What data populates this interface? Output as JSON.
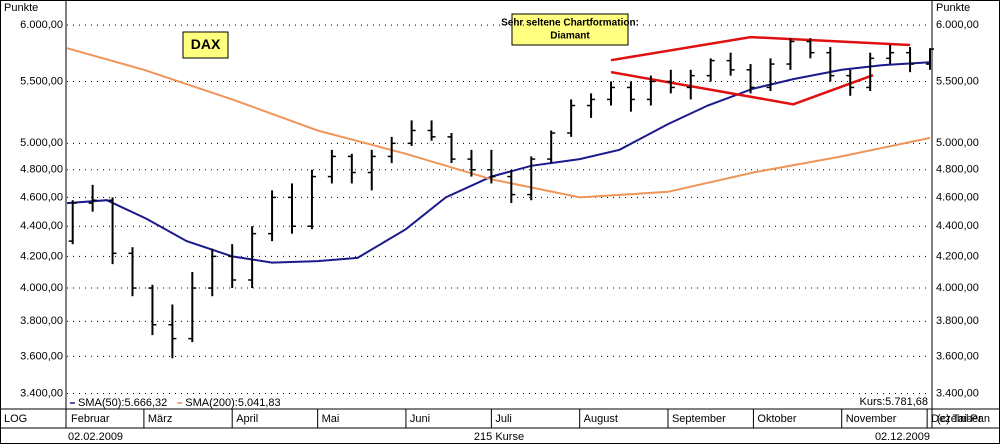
{
  "chart_data": {
    "type": "ohlc",
    "title": "DAX",
    "annotation": [
      "Sehr seltene Chartformation:",
      "Diamant"
    ],
    "y_label": "Punkte",
    "log_scale": true,
    "grid": true,
    "scale_label": "LOG",
    "footer": {
      "start": "02.02.2009",
      "count": "215 Kurse",
      "end": "02.12.2009",
      "copyright": "(c) Tai-Pan"
    },
    "xlim": [
      "2009-02-02",
      "2009-12-02"
    ],
    "xticks": [
      {
        "value": "2009-02-01",
        "label": "Februar"
      },
      {
        "value": "2009-03-01",
        "label": "März"
      },
      {
        "value": "2009-04-01",
        "label": "April"
      },
      {
        "value": "2009-05-01",
        "label": "Mai"
      },
      {
        "value": "2009-06-01",
        "label": "Juni"
      },
      {
        "value": "2009-07-01",
        "label": "Juli"
      },
      {
        "value": "2009-08-01",
        "label": "August"
      },
      {
        "value": "2009-09-01",
        "label": "September"
      },
      {
        "value": "2009-10-01",
        "label": "Oktober"
      },
      {
        "value": "2009-11-01",
        "label": "November"
      },
      {
        "value": "2009-12-01",
        "label": "Dezember"
      }
    ],
    "ylim": [
      3340,
      6160
    ],
    "yticks": [
      {
        "value": 3400,
        "label": "3.400,00"
      },
      {
        "value": 3600,
        "label": "3.600,00"
      },
      {
        "value": 3800,
        "label": "3.800,00"
      },
      {
        "value": 4000,
        "label": "4.000,00"
      },
      {
        "value": 4200,
        "label": "4.200,00"
      },
      {
        "value": 4400,
        "label": "4.400,00"
      },
      {
        "value": 4600,
        "label": "4.600,00"
      },
      {
        "value": 4800,
        "label": "4.800,00"
      },
      {
        "value": 5000,
        "label": "5.000,00"
      },
      {
        "value": 5500,
        "label": "5.500,00"
      },
      {
        "value": 6000,
        "label": "6.000,00"
      }
    ],
    "x": [
      "2009-02-04",
      "2009-02-11",
      "2009-02-18",
      "2009-02-25",
      "2009-03-04",
      "2009-03-11",
      "2009-03-18",
      "2009-03-25",
      "2009-04-01",
      "2009-04-08",
      "2009-04-15",
      "2009-04-22",
      "2009-04-29",
      "2009-05-06",
      "2009-05-13",
      "2009-05-20",
      "2009-05-27",
      "2009-06-03",
      "2009-06-10",
      "2009-06-17",
      "2009-06-24",
      "2009-07-01",
      "2009-07-08",
      "2009-07-15",
      "2009-07-22",
      "2009-07-29",
      "2009-08-05",
      "2009-08-12",
      "2009-08-19",
      "2009-08-26",
      "2009-09-02",
      "2009-09-09",
      "2009-09-16",
      "2009-09-23",
      "2009-09-30",
      "2009-10-07",
      "2009-10-14",
      "2009-10-21",
      "2009-10-28",
      "2009-11-04",
      "2009-11-11",
      "2009-11-18",
      "2009-11-25",
      "2009-12-02"
    ],
    "series": [
      {
        "name": "Kurs:5.781,68",
        "color": "#000000",
        "open": [
          4300,
          4560,
          4580,
          4220,
          4000,
          3780,
          3700,
          4000,
          4200,
          4050,
          4350,
          4600,
          4400,
          4750,
          4900,
          4780,
          4900,
          5000,
          5100,
          5050,
          4880,
          4800,
          4750,
          4620,
          4880,
          5080,
          5300,
          5350,
          5450,
          5350,
          5500,
          5450,
          5550,
          5680,
          5600,
          5450,
          5650,
          5850,
          5750,
          5550,
          5450,
          5700,
          5750,
          5650
        ],
        "high": [
          4580,
          4690,
          4600,
          4260,
          4020,
          3900,
          4100,
          4250,
          4280,
          4400,
          4650,
          4700,
          4800,
          4950,
          4920,
          4950,
          5050,
          5180,
          5180,
          5080,
          4950,
          4950,
          4800,
          4900,
          5100,
          5350,
          5400,
          5500,
          5500,
          5550,
          5600,
          5600,
          5700,
          5750,
          5650,
          5700,
          5880,
          5880,
          5800,
          5600,
          5750,
          5820,
          5800,
          5790
        ],
        "low": [
          4280,
          4500,
          4150,
          3950,
          3720,
          3590,
          3680,
          3950,
          4000,
          4000,
          4300,
          4350,
          4380,
          4700,
          4700,
          4650,
          4850,
          4980,
          5020,
          4850,
          4750,
          4700,
          4560,
          4580,
          4850,
          5050,
          5200,
          5300,
          5250,
          5300,
          5400,
          5350,
          5500,
          5550,
          5400,
          5420,
          5600,
          5700,
          5500,
          5380,
          5420,
          5650,
          5580,
          5600
        ],
        "close": [
          4560,
          4580,
          4220,
          4000,
          3780,
          3700,
          4000,
          4200,
          4050,
          4350,
          4600,
          4400,
          4750,
          4900,
          4780,
          4900,
          5000,
          5100,
          5050,
          4880,
          4800,
          4750,
          4620,
          4880,
          5080,
          5300,
          5350,
          5450,
          5350,
          5500,
          5450,
          5550,
          5680,
          5600,
          5450,
          5650,
          5850,
          5750,
          5550,
          5450,
          5700,
          5750,
          5650,
          5782
        ]
      }
    ],
    "indicators": [
      {
        "name": "SMA(50):5.666,32",
        "color": "#1a1a8c",
        "x": [
          "2009-02-02",
          "2009-02-16",
          "2009-03-02",
          "2009-03-16",
          "2009-04-01",
          "2009-04-15",
          "2009-05-01",
          "2009-05-15",
          "2009-06-01",
          "2009-06-15",
          "2009-07-01",
          "2009-07-15",
          "2009-08-01",
          "2009-08-15",
          "2009-09-01",
          "2009-09-15",
          "2009-10-01",
          "2009-10-15",
          "2009-11-01",
          "2009-11-15",
          "2009-12-02"
        ],
        "values": [
          4560,
          4580,
          4450,
          4300,
          4200,
          4160,
          4170,
          4190,
          4380,
          4600,
          4750,
          4830,
          4880,
          4950,
          5150,
          5300,
          5440,
          5520,
          5600,
          5640,
          5666
        ]
      },
      {
        "name": "SMA(200):5.041,83",
        "color": "#f0955a",
        "x": [
          "2009-02-02",
          "2009-03-01",
          "2009-04-01",
          "2009-05-01",
          "2009-06-01",
          "2009-07-01",
          "2009-08-01",
          "2009-09-01",
          "2009-10-01",
          "2009-11-01",
          "2009-12-02"
        ],
        "values": [
          5790,
          5600,
          5350,
          5100,
          4920,
          4730,
          4600,
          4640,
          4780,
          4900,
          5042
        ]
      }
    ],
    "trendlines": [
      {
        "color": "#e01010",
        "x": [
          "2009-08-12",
          "2009-09-30",
          "2009-11-25"
        ],
        "values": [
          5684,
          5890,
          5818
        ]
      },
      {
        "color": "#e01010",
        "x": [
          "2009-08-12",
          "2009-10-15",
          "2009-11-12"
        ],
        "values": [
          5580,
          5310,
          5554
        ]
      }
    ]
  }
}
